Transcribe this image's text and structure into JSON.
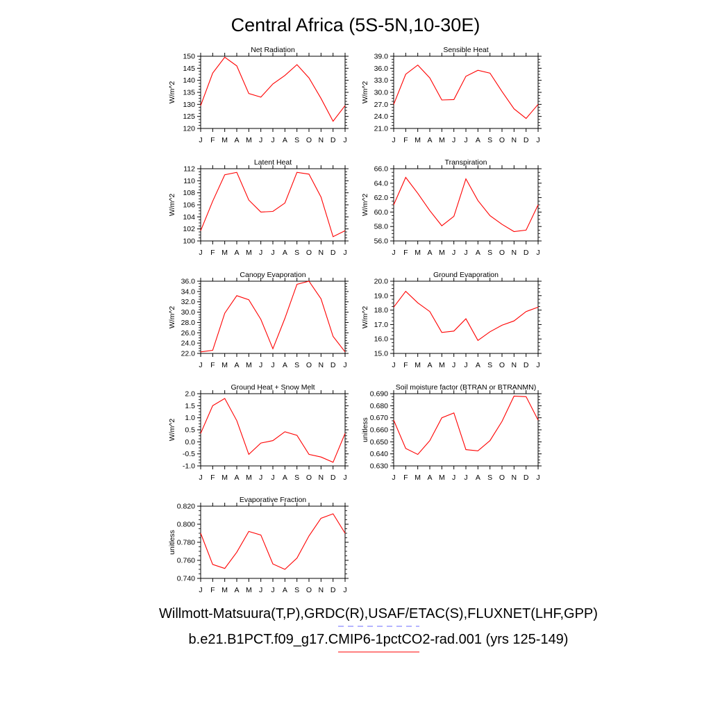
{
  "title": "Central Africa (5S-5N,10-30E)",
  "months": [
    "J",
    "F",
    "M",
    "A",
    "M",
    "J",
    "J",
    "A",
    "S",
    "O",
    "N",
    "D",
    "J"
  ],
  "legend": {
    "obs_label": "Willmott-Matsuura(T,P),GRDC(R),USAF/ETAC(S),FLUXNET(LHF,GPP)",
    "model_label": "b.e21.B1PCT.f09_g17.CMIP6-1pctCO2-rad.001 (yrs 125-149)",
    "obs_color": "#6b6bff",
    "model_color": "#ff0000"
  },
  "chart_data": [
    {
      "type": "line",
      "title": "Net Radiation",
      "ylabel": "W/m^2",
      "ylim": [
        120,
        150
      ],
      "yticks": [
        "120",
        "125",
        "130",
        "135",
        "140",
        "145",
        "150"
      ],
      "series": [
        {
          "color": "#ff0000",
          "values": [
            129.5,
            143,
            149.6,
            146,
            134.5,
            133,
            138.5,
            142,
            146.5,
            141,
            132.5,
            123,
            129.5
          ]
        }
      ]
    },
    {
      "type": "line",
      "title": "Sensible Heat",
      "ylabel": "W/m^2",
      "ylim": [
        21,
        39
      ],
      "yticks": [
        "21.0",
        "24.0",
        "27.0",
        "30.0",
        "33.0",
        "36.0",
        "39.0"
      ],
      "series": [
        {
          "color": "#ff0000",
          "values": [
            27,
            34.5,
            36.8,
            33.6,
            28.1,
            28.2,
            34,
            35.5,
            34.8,
            30.2,
            25.9,
            23.5,
            27
          ]
        }
      ]
    },
    {
      "type": "line",
      "title": "Latent Heat",
      "ylabel": "W/m^2",
      "ylim": [
        100,
        112
      ],
      "yticks": [
        "100",
        "102",
        "104",
        "106",
        "108",
        "110",
        "112"
      ],
      "series": [
        {
          "color": "#ff0000",
          "values": [
            101.7,
            106.6,
            111,
            111.4,
            106.8,
            104.8,
            104.9,
            106.3,
            111.4,
            111.1,
            107.3,
            100.7,
            101.7
          ]
        }
      ]
    },
    {
      "type": "line",
      "title": "Transpiration",
      "ylabel": "W/m^2",
      "ylim": [
        56,
        66
      ],
      "yticks": [
        "56.0",
        "58.0",
        "60.0",
        "62.0",
        "64.0",
        "66.0"
      ],
      "series": [
        {
          "color": "#ff0000",
          "values": [
            61,
            64.8,
            62.6,
            60.2,
            58.1,
            59.4,
            64.6,
            61.6,
            59.5,
            58.3,
            57.3,
            57.5,
            61
          ]
        }
      ]
    },
    {
      "type": "line",
      "title": "Canopy Evaporation",
      "ylabel": "W/m^2",
      "ylim": [
        22,
        36
      ],
      "yticks": [
        "22.0",
        "24.0",
        "26.0",
        "28.0",
        "30.0",
        "32.0",
        "34.0",
        "36.0"
      ],
      "series": [
        {
          "color": "#ff0000",
          "values": [
            22.3,
            22.6,
            29.8,
            33.2,
            32.4,
            28.6,
            22.9,
            28.8,
            35.4,
            36,
            32.6,
            25.3,
            22.3
          ]
        }
      ]
    },
    {
      "type": "line",
      "title": "Ground Evaporation",
      "ylabel": "W/m^2",
      "ylim": [
        15,
        20
      ],
      "yticks": [
        "15.0",
        "16.0",
        "17.0",
        "18.0",
        "19.0",
        "20.0"
      ],
      "series": [
        {
          "color": "#ff0000",
          "values": [
            18.2,
            19.3,
            18.5,
            17.9,
            16.45,
            16.55,
            17.4,
            15.9,
            16.5,
            16.95,
            17.25,
            17.9,
            18.2
          ]
        }
      ]
    },
    {
      "type": "line",
      "title": "Ground Heat + Snow Melt",
      "ylabel": "W/m^2",
      "ylim": [
        -1,
        2
      ],
      "yticks": [
        "-1.0",
        "-0.5",
        "0.0",
        "0.5",
        "1.0",
        "1.5",
        "2.0"
      ],
      "series": [
        {
          "color": "#ff0000",
          "values": [
            0.35,
            1.5,
            1.8,
            0.88,
            -0.52,
            -0.05,
            0.05,
            0.42,
            0.27,
            -0.52,
            -0.63,
            -0.85,
            0.35
          ]
        }
      ]
    },
    {
      "type": "line",
      "title": "Soil moisture factor (BTRAN or BTRANMN)",
      "ylabel": "unitless",
      "ylim": [
        0.63,
        0.69
      ],
      "yticks": [
        "0.630",
        "0.640",
        "0.650",
        "0.660",
        "0.670",
        "0.680",
        "0.690"
      ],
      "series": [
        {
          "color": "#ff0000",
          "values": [
            0.668,
            0.6445,
            0.6395,
            0.651,
            0.67,
            0.674,
            0.6435,
            0.6425,
            0.651,
            0.667,
            0.688,
            0.6875,
            0.668
          ]
        }
      ]
    },
    {
      "type": "line",
      "title": "Evaporative Fraction",
      "ylabel": "unitless",
      "ylim": [
        0.74,
        0.82
      ],
      "yticks": [
        "0.740",
        "0.760",
        "0.780",
        "0.800",
        "0.820"
      ],
      "series": [
        {
          "color": "#ff0000",
          "values": [
            0.79,
            0.7555,
            0.751,
            0.769,
            0.792,
            0.788,
            0.756,
            0.75,
            0.7625,
            0.787,
            0.8065,
            0.8115,
            0.79
          ]
        }
      ]
    }
  ]
}
